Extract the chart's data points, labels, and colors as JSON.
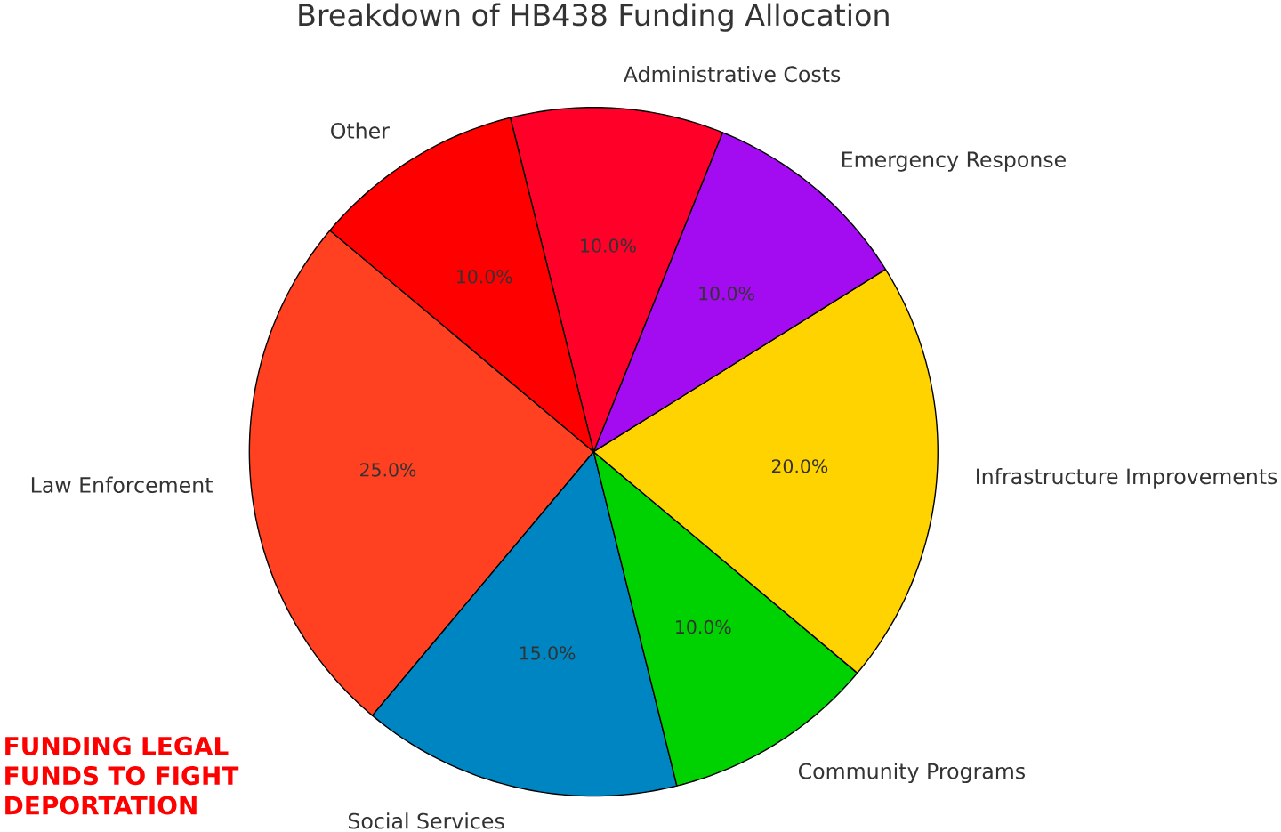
{
  "chart_data": {
    "type": "pie",
    "title": "Breakdown of HB438 Funding Allocation",
    "categories": [
      "Law Enforcement",
      "Social Services",
      "Community Programs",
      "Infrastructure Improvements",
      "Emergency Response",
      "Administrative Costs",
      "Other"
    ],
    "values": [
      25,
      15,
      10,
      20,
      10,
      10,
      10
    ],
    "colors": [
      "#ff4122",
      "#0085c3",
      "#00d100",
      "#ffd300",
      "#a30cf0",
      "#ff0028",
      "#ff0000"
    ],
    "value_labels": [
      "25.0%",
      "15.0%",
      "10.0%",
      "20.0%",
      "10.0%",
      "10.0%",
      "10.0%"
    ],
    "annotations": [
      "FUNDING LEGAL FUNDS TO FIGHT DEPORTATION"
    ]
  }
}
